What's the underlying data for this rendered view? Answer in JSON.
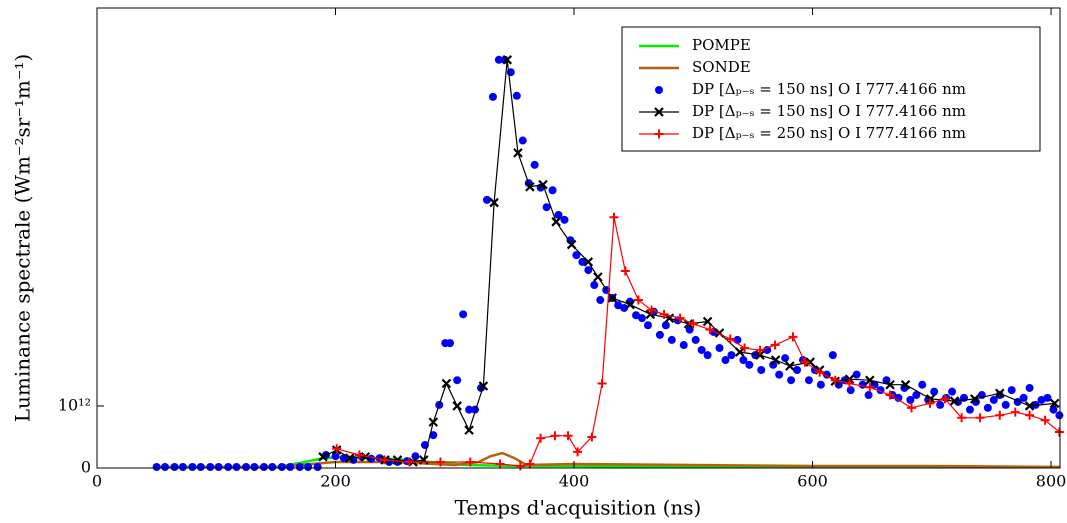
{
  "chart_data": {
    "type": "line",
    "xlabel": "Temps d'acquisition (ns)",
    "ylabel": "Luminance spectrale (Wm⁻²sr⁻¹m⁻¹)",
    "xlim": [
      0,
      807.5
    ],
    "xticks": [
      0,
      200,
      400,
      600,
      800
    ],
    "ylim": [
      0,
      2.6e+18
    ],
    "yscale": "symlog",
    "linthresh": 1000000000000.0,
    "yticks": [
      0,
      {
        "value": 1000000000000.0,
        "label": "10¹²"
      }
    ],
    "legend": "upper right",
    "series": [
      {
        "name": "POMPE",
        "color": "#00ee00",
        "line": true,
        "marker": "none",
        "x": [
          50,
          150,
          170,
          190,
          210,
          230,
          250,
          270,
          290,
          310,
          350,
          400,
          500,
          600,
          700,
          807
        ],
        "values": [
          16000000000.0,
          16000000000.0,
          80000000000.0,
          160000000000.0,
          180000000000.0,
          160000000000.0,
          145000000000.0,
          110000000000.0,
          80000000000.0,
          48000000000.0,
          32000000000.0,
          32000000000.0,
          16000000000.0,
          16000000000.0,
          16000000000.0,
          16000000000.0
        ]
      },
      {
        "name": "SONDE",
        "color": "#b8610c",
        "line": true,
        "marker": "none",
        "x": [
          50,
          150,
          200,
          250,
          300,
          320,
          330,
          340,
          350,
          360,
          400,
          500,
          600,
          700,
          807
        ],
        "values": [
          16000000000.0,
          16000000000.0,
          97000000000.0,
          97000000000.0,
          48000000000.0,
          97000000000.0,
          190000000000.0,
          240000000000.0,
          160000000000.0,
          48000000000.0,
          65000000000.0,
          48000000000.0,
          32000000000.0,
          32000000000.0,
          16000000000.0
        ]
      },
      {
        "name": "DP [Δₚ₋ₛ = 150 ns] O I 777.4166 nm",
        "color": "#0000ff",
        "line": false,
        "marker": "o",
        "x": [
          50,
          57,
          65,
          72,
          80,
          87,
          95,
          102,
          110,
          117,
          125,
          132,
          140,
          147,
          155,
          162,
          170,
          177,
          185,
          192,
          200,
          207,
          215,
          222,
          230,
          237,
          245,
          252,
          260,
          267,
          275,
          282,
          287,
          292,
          296,
          302,
          307,
          312,
          317,
          322,
          327,
          332,
          337,
          342,
          347,
          352,
          357,
          362,
          367,
          372,
          377,
          382,
          387,
          392,
          397,
          402,
          407,
          412,
          417,
          422,
          427,
          432,
          437,
          442,
          447,
          452,
          457,
          462,
          467,
          472,
          477,
          482,
          487,
          492,
          497,
          502,
          507,
          512,
          517,
          522,
          527,
          532,
          537,
          542,
          547,
          552,
          557,
          562,
          567,
          572,
          577,
          582,
          587,
          592,
          597,
          602,
          607,
          612,
          617,
          622,
          627,
          632,
          637,
          642,
          647,
          652,
          657,
          662,
          667,
          672,
          677,
          682,
          687,
          692,
          697,
          702,
          707,
          712,
          717,
          722,
          727,
          732,
          737,
          742,
          747,
          752,
          757,
          762,
          767,
          772,
          777,
          782,
          787,
          792,
          797,
          802,
          807
        ],
        "values": [
          16000000000.0,
          16000000000.0,
          16000000000.0,
          16000000000.0,
          16000000000.0,
          16000000000.0,
          16000000000.0,
          16000000000.0,
          16000000000.0,
          16000000000.0,
          16000000000.0,
          16000000000.0,
          16000000000.0,
          16000000000.0,
          16000000000.0,
          16000000000.0,
          16000000000.0,
          16000000000.0,
          16000000000.0,
          210000000000.0,
          190000000000.0,
          160000000000.0,
          130000000000.0,
          180000000000.0,
          150000000000.0,
          160000000000.0,
          97000000000.0,
          97000000000.0,
          110000000000.0,
          190000000000.0,
          370000000000.0,
          530000000000.0,
          1040000000000.0,
          10300000000000.0,
          10300000000000.0,
          2600000000000.0,
          30000000000000.0,
          940000000000.0,
          940000000000.0,
          1950000000000.0,
          2100000000000000.0,
          9.6e+16,
          3.8e+17,
          3.8e+17,
          2.4e+17,
          1e+17,
          1.9e+16,
          3900000000000000.0,
          7700000000000000.0,
          3300000000000000.0,
          1600000000000000.0,
          3000000000000000.0,
          1200000000000000.0,
          1000000000000000.0,
          470000000000000.0,
          270000000000000.0,
          210000000000000.0,
          155000000000000.0,
          89000000000000.0,
          51000000000000.0,
          74000000000000.0,
          55000000000000.0,
          42000000000000.0,
          38000000000000.0,
          48000000000000.0,
          29000000000000.0,
          26000000000000.0,
          20000000000000.0,
          33000000000000.0,
          14000000000000.0,
          20000000000000.0,
          11600000000000.0,
          24000000000000.0,
          9600000000000.0,
          17000000000000.0,
          11600000000000.0,
          8000000000000.0,
          6600000000000.0,
          15600000000000.0,
          8600000000000.0,
          5500000000000.0,
          6600000000000.0,
          11600000000000.0,
          5500000000000.0,
          4600000000000.0,
          6600000000000.0,
          3800000000000.0,
          8000000000000.0,
          4600000000000.0,
          3200000000000.0,
          5900000000000.0,
          2600000000000.0,
          3800000000000.0,
          5500000000000.0,
          2600000000000.0,
          3800000000000.0,
          2200000000000.0,
          3200000000000.0,
          6600000000000.0,
          2200000000000.0,
          2600000000000.0,
          1800000000000.0,
          3200000000000.0,
          2200000000000.0,
          1500000000000.0,
          2200000000000.0,
          1800000000000.0,
          2600000000000.0,
          1500000000000.0,
          1350000000000.0,
          1950000000000.0,
          1250000000000.0,
          1500000000000.0,
          2200000000000.0,
          1250000000000.0,
          1700000000000.0,
          1040000000000.0,
          1350000000000.0,
          1700000000000.0,
          1160000000000.0,
          1350000000000.0,
          940000000000.0,
          1160000000000.0,
          1500000000000.0,
          970000000000.0,
          1250000000000.0,
          1500000000000.0,
          1040000000000.0,
          1800000000000.0,
          1160000000000.0,
          1350000000000.0,
          1950000000000.0,
          1040000000000.0,
          1250000000000.0,
          1350000000000.0,
          940000000000.0,
          850000000000.0
        ]
      },
      {
        "name": "DP [Δₚ₋ₛ = 150 ns] O I 777.4166 nm",
        "color": "#000000",
        "line": true,
        "marker": "x",
        "x": [
          189.5,
          201,
          212,
          225,
          241.5,
          252,
          265,
          274,
          282,
          293,
          302,
          312,
          324,
          333,
          344,
          353,
          363,
          374,
          385,
          398,
          412,
          420,
          432,
          447,
          464,
          480,
          496,
          512,
          522,
          539,
          556,
          569,
          581,
          598,
          606,
          619,
          631,
          648,
          665,
          678,
          699,
          719,
          736,
          757,
          782,
          803
        ],
        "values": [
          180000000000.0,
          290000000000.0,
          160000000000.0,
          180000000000.0,
          130000000000.0,
          130000000000.0,
          97000000000.0,
          130000000000.0,
          740000000000.0,
          2300000000000.0,
          1000000000000.0,
          610000000000.0,
          2100000000000.0,
          1900000000000000.0,
          3.8e+17,
          1.2e+16,
          3400000000000000.0,
          3700000000000000.0,
          930000000000000.0,
          400000000000000.0,
          210000000000000.0,
          120000000000000.0,
          55000000000000.0,
          43000000000000.0,
          30000000000000.0,
          26000000000000.0,
          21000000000000.0,
          23000000000000.0,
          15000000000000.0,
          7400000000000.0,
          6600000000000.0,
          5500000000000.0,
          4400000000000.0,
          5100000000000.0,
          3800000000000.0,
          2500000000000.0,
          2700000000000.0,
          2600000000000.0,
          2200000000000.0,
          2200000000000.0,
          1300000000000.0,
          1200000000000.0,
          1300000000000.0,
          1600000000000.0,
          1000000000000.0,
          1100000000000.0
        ]
      },
      {
        "name": "DP [Δₚ₋ₛ = 250 ns] O I 777.4166 nm",
        "color": "#ff0000",
        "line": true,
        "marker": "+",
        "x": [
          201,
          220,
          241,
          262,
          288,
          313,
          338,
          355,
          363,
          372,
          384,
          395,
          403,
          415,
          423.5,
          433.5,
          443,
          454,
          465,
          475.5,
          489,
          500,
          514,
          531,
          543,
          556,
          568.6,
          583.6,
          593.7,
          606,
          619,
          631,
          648,
          665,
          683,
          698.5,
          711,
          725,
          740.5,
          757,
          770,
          782,
          795,
          807
        ],
        "values": [
          310000000000.0,
          210000000000.0,
          130000000000.0,
          97000000000.0,
          97000000000.0,
          97000000000.0,
          65000000000.0,
          32000000000.0,
          65000000000.0,
          480000000000.0,
          520000000000.0,
          520000000000.0,
          260000000000.0,
          500000000000.0,
          2300000000000.0,
          1100000000000000.0,
          150000000000000.0,
          51000000000000.0,
          35000000000000.0,
          30000000000000.0,
          26000000000000.0,
          21000000000000.0,
          17000000000000.0,
          12000000000000.0,
          8600000000000.0,
          7900000000000.0,
          9600000000000.0,
          13000000000000.0,
          5100000000000.0,
          3500000000000.0,
          2600000000000.0,
          2300000000000.0,
          2000000000000.0,
          1500000000000.0,
          970000000000.0,
          1100000000000.0,
          1300000000000.0,
          810000000000.0,
          810000000000.0,
          850000000000.0,
          900000000000.0,
          850000000000.0,
          770000000000.0,
          580000000000.0
        ]
      }
    ]
  }
}
